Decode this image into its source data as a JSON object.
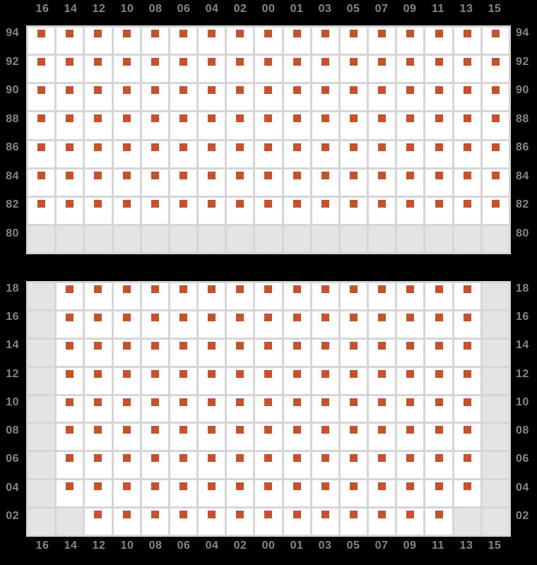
{
  "chart_data": {
    "type": "heatmap",
    "description": "Two-panel availability grid (seat-map style): orange square markers in white cells, gray cells where no marker exists. Column numbers run even descending 16-00 then odd ascending 01-15; row numbers descend within each panel.",
    "columns": [
      "16",
      "14",
      "12",
      "10",
      "08",
      "06",
      "04",
      "02",
      "00",
      "01",
      "03",
      "05",
      "07",
      "09",
      "11",
      "13",
      "15"
    ],
    "panels": [
      {
        "name": "upper",
        "rows": [
          "94",
          "92",
          "90",
          "88",
          "86",
          "84",
          "82",
          "80"
        ],
        "matrix": [
          [
            1,
            1,
            1,
            1,
            1,
            1,
            1,
            1,
            1,
            1,
            1,
            1,
            1,
            1,
            1,
            1,
            1
          ],
          [
            1,
            1,
            1,
            1,
            1,
            1,
            1,
            1,
            1,
            1,
            1,
            1,
            1,
            1,
            1,
            1,
            1
          ],
          [
            1,
            1,
            1,
            1,
            1,
            1,
            1,
            1,
            1,
            1,
            1,
            1,
            1,
            1,
            1,
            1,
            1
          ],
          [
            1,
            1,
            1,
            1,
            1,
            1,
            1,
            1,
            1,
            1,
            1,
            1,
            1,
            1,
            1,
            1,
            1
          ],
          [
            1,
            1,
            1,
            1,
            1,
            1,
            1,
            1,
            1,
            1,
            1,
            1,
            1,
            1,
            1,
            1,
            1
          ],
          [
            1,
            1,
            1,
            1,
            1,
            1,
            1,
            1,
            1,
            1,
            1,
            1,
            1,
            1,
            1,
            1,
            1
          ],
          [
            1,
            1,
            1,
            1,
            1,
            1,
            1,
            1,
            1,
            1,
            1,
            1,
            1,
            1,
            1,
            1,
            1
          ],
          [
            0,
            0,
            0,
            0,
            0,
            0,
            0,
            0,
            0,
            0,
            0,
            0,
            0,
            0,
            0,
            0,
            0
          ]
        ]
      },
      {
        "name": "lower",
        "rows": [
          "18",
          "16",
          "14",
          "12",
          "10",
          "08",
          "06",
          "04",
          "02"
        ],
        "matrix": [
          [
            0,
            1,
            1,
            1,
            1,
            1,
            1,
            1,
            1,
            1,
            1,
            1,
            1,
            1,
            1,
            1,
            0
          ],
          [
            0,
            1,
            1,
            1,
            1,
            1,
            1,
            1,
            1,
            1,
            1,
            1,
            1,
            1,
            1,
            1,
            0
          ],
          [
            0,
            1,
            1,
            1,
            1,
            1,
            1,
            1,
            1,
            1,
            1,
            1,
            1,
            1,
            1,
            1,
            0
          ],
          [
            0,
            1,
            1,
            1,
            1,
            1,
            1,
            1,
            1,
            1,
            1,
            1,
            1,
            1,
            1,
            1,
            0
          ],
          [
            0,
            1,
            1,
            1,
            1,
            1,
            1,
            1,
            1,
            1,
            1,
            1,
            1,
            1,
            1,
            1,
            0
          ],
          [
            0,
            1,
            1,
            1,
            1,
            1,
            1,
            1,
            1,
            1,
            1,
            1,
            1,
            1,
            1,
            1,
            0
          ],
          [
            0,
            1,
            1,
            1,
            1,
            1,
            1,
            1,
            1,
            1,
            1,
            1,
            1,
            1,
            1,
            1,
            0
          ],
          [
            0,
            1,
            1,
            1,
            1,
            1,
            1,
            1,
            1,
            1,
            1,
            1,
            1,
            1,
            1,
            1,
            0
          ],
          [
            0,
            0,
            1,
            1,
            1,
            1,
            1,
            1,
            1,
            1,
            1,
            1,
            1,
            1,
            1,
            0,
            0
          ]
        ]
      }
    ],
    "legend": "none",
    "grid": "on",
    "colors": {
      "background": "#000000",
      "cell": "#ffffff",
      "empty_cell": "#e4e4e6",
      "grid_line": "#d6d6d8",
      "marker": "#c8512c",
      "label_text": "#85858a"
    }
  }
}
